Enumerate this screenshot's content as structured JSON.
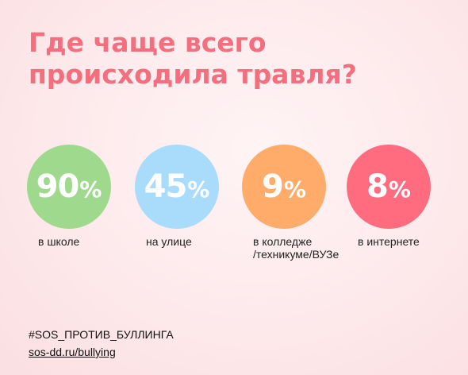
{
  "chart_data": {
    "type": "bar",
    "title_lines": [
      "Где чаще всего",
      "происходила травля?"
    ],
    "percent_sign": "%",
    "categories": [
      "в школе",
      "на улице",
      "в колледже\n/техникуме/ВУЗе",
      "в интернете"
    ],
    "values": [
      90,
      45,
      9,
      8
    ],
    "value_labels": [
      "90",
      "45",
      "9",
      "8"
    ],
    "colors": [
      "#9ed98e",
      "#a8dcfa",
      "#ffac6b",
      "#ff6b7f"
    ],
    "title_color": "#f46f7e"
  },
  "footer": {
    "hashtag": "#SOS_ПРОТИВ_БУЛЛИНГА",
    "link": "sos-dd.ru/bullying"
  }
}
